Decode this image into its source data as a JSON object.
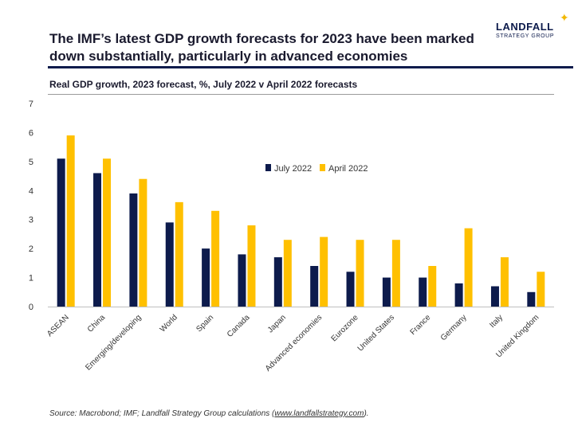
{
  "header": {
    "title": "The IMF’s latest GDP growth forecasts for 2023 have been marked down substantially, particularly in advanced economies",
    "logo_main": "LANDFALL",
    "logo_sub": "STRATEGY GROUP"
  },
  "chart_data": {
    "type": "bar",
    "title": "Real GDP growth, 2023 forecast, %, July 2022 v April 2022 forecasts",
    "xlabel": "",
    "ylabel": "",
    "ylim": [
      0,
      7
    ],
    "yticks": [
      0,
      1,
      2,
      3,
      4,
      5,
      6,
      7
    ],
    "grid": false,
    "legend_position": "top-center",
    "categories": [
      "ASEAN",
      "China",
      "Emerging/developing",
      "World",
      "Spain",
      "Canada",
      "Japan",
      "Advanced economies",
      "Eurozone",
      "United States",
      "France",
      "Germany",
      "Italy",
      "United Kingdom"
    ],
    "series": [
      {
        "name": "July 2022",
        "color": "#0d1b4c",
        "values": [
          5.1,
          4.6,
          3.9,
          2.9,
          2.0,
          1.8,
          1.7,
          1.4,
          1.2,
          1.0,
          1.0,
          0.8,
          0.7,
          0.5
        ]
      },
      {
        "name": "April 2022",
        "color": "#ffc000",
        "values": [
          5.9,
          5.1,
          4.4,
          3.6,
          3.3,
          2.8,
          2.3,
          2.4,
          2.3,
          2.3,
          1.4,
          2.7,
          1.7,
          1.2
        ]
      }
    ]
  },
  "footer": {
    "source_prefix": "Source: Macrobond; IMF; Landfall Strategy Group calculations (",
    "source_link": "www.landfallstrategy.com",
    "source_suffix": ")."
  }
}
